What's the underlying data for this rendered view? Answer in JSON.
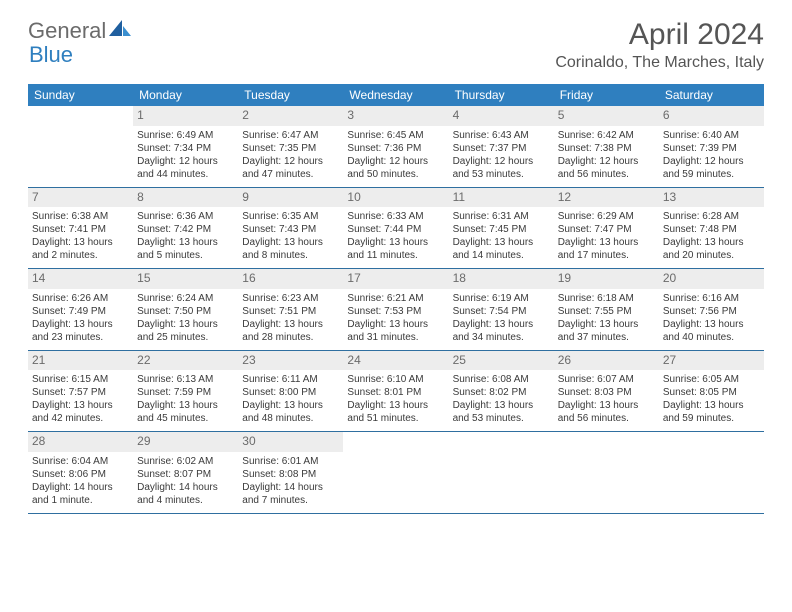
{
  "logo": {
    "text1": "General",
    "text2": "Blue"
  },
  "title": "April 2024",
  "location": "Corinaldo, The Marches, Italy",
  "colors": {
    "header_bg": "#2f7fbf",
    "header_text": "#ffffff",
    "daynum_bg": "#ededed",
    "daynum_text": "#6b6b6b",
    "divider": "#2f6fa0",
    "body_text": "#3a3a3a",
    "title_text": "#555555"
  },
  "dayNames": [
    "Sunday",
    "Monday",
    "Tuesday",
    "Wednesday",
    "Thursday",
    "Friday",
    "Saturday"
  ],
  "weeks": [
    [
      null,
      {
        "n": "1",
        "sr": "6:49 AM",
        "ss": "7:34 PM",
        "dl": "12 hours and 44 minutes."
      },
      {
        "n": "2",
        "sr": "6:47 AM",
        "ss": "7:35 PM",
        "dl": "12 hours and 47 minutes."
      },
      {
        "n": "3",
        "sr": "6:45 AM",
        "ss": "7:36 PM",
        "dl": "12 hours and 50 minutes."
      },
      {
        "n": "4",
        "sr": "6:43 AM",
        "ss": "7:37 PM",
        "dl": "12 hours and 53 minutes."
      },
      {
        "n": "5",
        "sr": "6:42 AM",
        "ss": "7:38 PM",
        "dl": "12 hours and 56 minutes."
      },
      {
        "n": "6",
        "sr": "6:40 AM",
        "ss": "7:39 PM",
        "dl": "12 hours and 59 minutes."
      }
    ],
    [
      {
        "n": "7",
        "sr": "6:38 AM",
        "ss": "7:41 PM",
        "dl": "13 hours and 2 minutes."
      },
      {
        "n": "8",
        "sr": "6:36 AM",
        "ss": "7:42 PM",
        "dl": "13 hours and 5 minutes."
      },
      {
        "n": "9",
        "sr": "6:35 AM",
        "ss": "7:43 PM",
        "dl": "13 hours and 8 minutes."
      },
      {
        "n": "10",
        "sr": "6:33 AM",
        "ss": "7:44 PM",
        "dl": "13 hours and 11 minutes."
      },
      {
        "n": "11",
        "sr": "6:31 AM",
        "ss": "7:45 PM",
        "dl": "13 hours and 14 minutes."
      },
      {
        "n": "12",
        "sr": "6:29 AM",
        "ss": "7:47 PM",
        "dl": "13 hours and 17 minutes."
      },
      {
        "n": "13",
        "sr": "6:28 AM",
        "ss": "7:48 PM",
        "dl": "13 hours and 20 minutes."
      }
    ],
    [
      {
        "n": "14",
        "sr": "6:26 AM",
        "ss": "7:49 PM",
        "dl": "13 hours and 23 minutes."
      },
      {
        "n": "15",
        "sr": "6:24 AM",
        "ss": "7:50 PM",
        "dl": "13 hours and 25 minutes."
      },
      {
        "n": "16",
        "sr": "6:23 AM",
        "ss": "7:51 PM",
        "dl": "13 hours and 28 minutes."
      },
      {
        "n": "17",
        "sr": "6:21 AM",
        "ss": "7:53 PM",
        "dl": "13 hours and 31 minutes."
      },
      {
        "n": "18",
        "sr": "6:19 AM",
        "ss": "7:54 PM",
        "dl": "13 hours and 34 minutes."
      },
      {
        "n": "19",
        "sr": "6:18 AM",
        "ss": "7:55 PM",
        "dl": "13 hours and 37 minutes."
      },
      {
        "n": "20",
        "sr": "6:16 AM",
        "ss": "7:56 PM",
        "dl": "13 hours and 40 minutes."
      }
    ],
    [
      {
        "n": "21",
        "sr": "6:15 AM",
        "ss": "7:57 PM",
        "dl": "13 hours and 42 minutes."
      },
      {
        "n": "22",
        "sr": "6:13 AM",
        "ss": "7:59 PM",
        "dl": "13 hours and 45 minutes."
      },
      {
        "n": "23",
        "sr": "6:11 AM",
        "ss": "8:00 PM",
        "dl": "13 hours and 48 minutes."
      },
      {
        "n": "24",
        "sr": "6:10 AM",
        "ss": "8:01 PM",
        "dl": "13 hours and 51 minutes."
      },
      {
        "n": "25",
        "sr": "6:08 AM",
        "ss": "8:02 PM",
        "dl": "13 hours and 53 minutes."
      },
      {
        "n": "26",
        "sr": "6:07 AM",
        "ss": "8:03 PM",
        "dl": "13 hours and 56 minutes."
      },
      {
        "n": "27",
        "sr": "6:05 AM",
        "ss": "8:05 PM",
        "dl": "13 hours and 59 minutes."
      }
    ],
    [
      {
        "n": "28",
        "sr": "6:04 AM",
        "ss": "8:06 PM",
        "dl": "14 hours and 1 minute."
      },
      {
        "n": "29",
        "sr": "6:02 AM",
        "ss": "8:07 PM",
        "dl": "14 hours and 4 minutes."
      },
      {
        "n": "30",
        "sr": "6:01 AM",
        "ss": "8:08 PM",
        "dl": "14 hours and 7 minutes."
      },
      null,
      null,
      null,
      null
    ]
  ],
  "labels": {
    "sunrise": "Sunrise:",
    "sunset": "Sunset:",
    "daylight": "Daylight:"
  }
}
